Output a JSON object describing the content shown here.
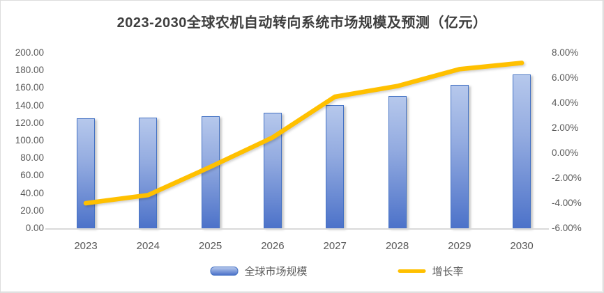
{
  "chart_data": {
    "type": "combo",
    "title": "2023-2030全球农机自动转向系统市场规模及预测（亿元）",
    "categories": [
      "2023",
      "2024",
      "2025",
      "2026",
      "2027",
      "2028",
      "2029",
      "2030"
    ],
    "series": [
      {
        "name": "全球市场规模",
        "type": "bar",
        "axis": "left",
        "unit": "亿元",
        "values": [
          125.6,
          126.1,
          127.5,
          131.8,
          140.5,
          151.2,
          163.5,
          175.4
        ]
      },
      {
        "name": "增长率",
        "type": "line",
        "axis": "right",
        "unit": "%",
        "values": [
          -4.0,
          -3.35,
          -1.1,
          1.25,
          4.5,
          5.35,
          6.7,
          7.2
        ]
      }
    ],
    "left_axis": {
      "min": 0,
      "max": 200,
      "step": 20,
      "tick_labels": [
        "200.00",
        "180.00",
        "160.00",
        "140.00",
        "120.00",
        "100.00",
        "80.00",
        "60.00",
        "40.00",
        "20.00",
        "0.00"
      ]
    },
    "right_axis": {
      "min": -6,
      "max": 8,
      "step": 2,
      "tick_labels": [
        "8.00%",
        "6.00%",
        "4.00%",
        "2.00%",
        "0.00%",
        "-2.00%",
        "-4.00%",
        "-6.00%"
      ]
    },
    "gridlines": false,
    "legend_position": "bottom",
    "colors": {
      "bar_fill_top": "#b6c8ec",
      "bar_fill_bottom": "#4c72c9",
      "bar_border": "#4472c4",
      "line": "#ffc000",
      "axis_text": "#595959",
      "title_text": "#3f3f3f",
      "baseline": "#d9d9d9"
    }
  }
}
